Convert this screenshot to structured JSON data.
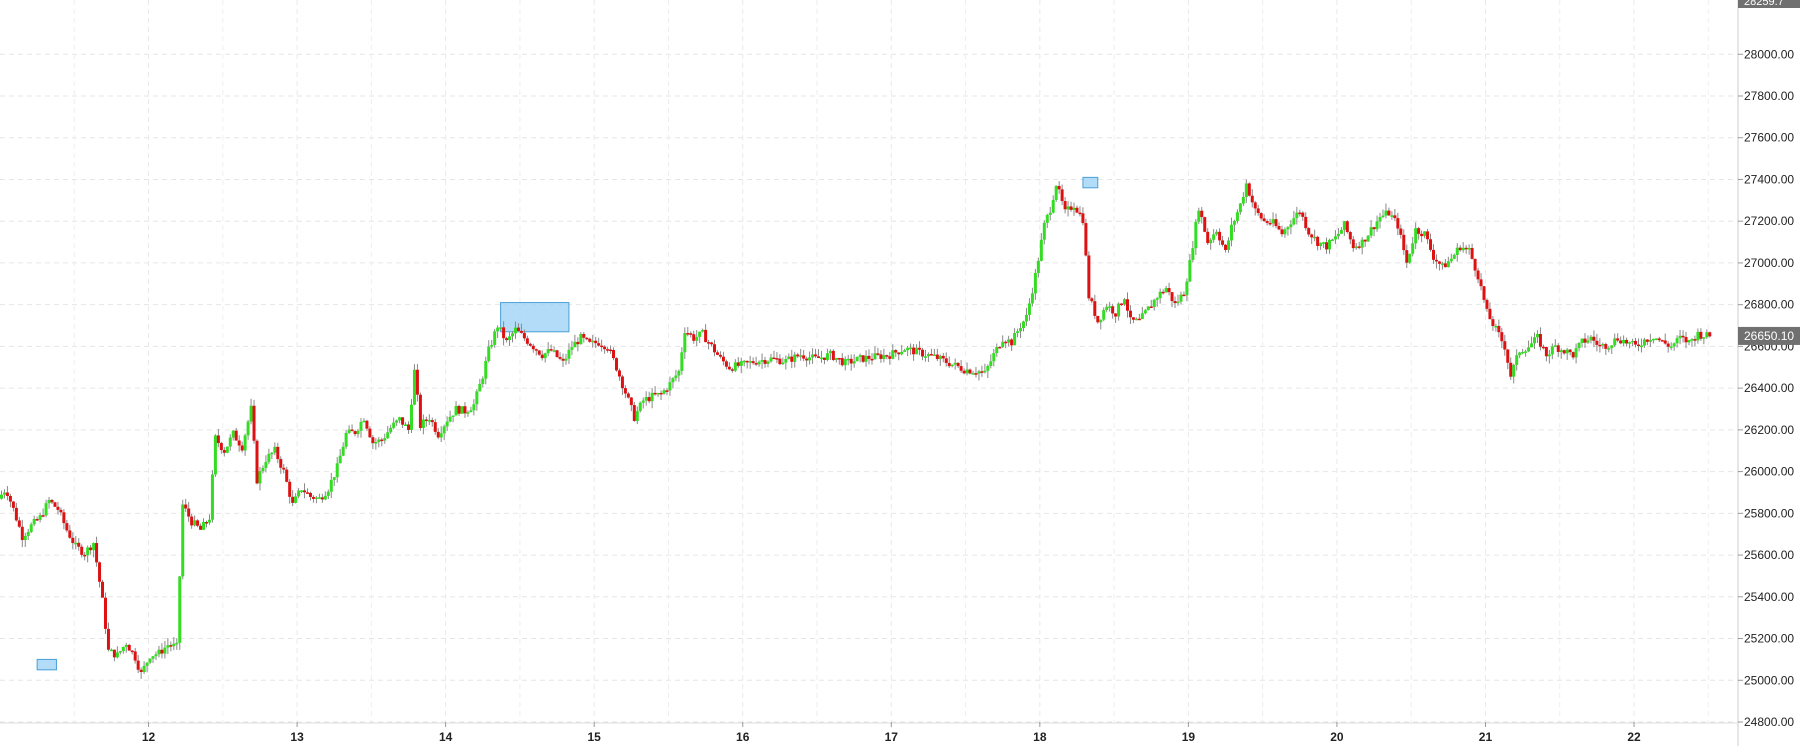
{
  "chart_data": {
    "type": "candlestick",
    "title": "",
    "xlabel": "",
    "ylabel": "",
    "ylim": [
      24800,
      28260
    ],
    "xlim": [
      11.0,
      22.7
    ],
    "yticks": [
      "24800.00",
      "25000.00",
      "25200.00",
      "25400.00",
      "25600.00",
      "25800.00",
      "26000.00",
      "26200.00",
      "26400.00",
      "26600.00",
      "26800.00",
      "27000.00",
      "27200.00",
      "27400.00",
      "27600.00",
      "27800.00",
      "28000.00"
    ],
    "xticks": [
      "12",
      "13",
      "14",
      "15",
      "16",
      "17",
      "18",
      "19",
      "20",
      "21",
      "22"
    ],
    "grid": true,
    "up_color": "#33dd22",
    "down_color": "#dd1111",
    "wick_color": "#888888",
    "current_price": {
      "label": "26650.10",
      "value": 26650.1,
      "bg": "#707070"
    },
    "top_price_tag": {
      "label": "28259.7",
      "bg": "#707070"
    },
    "highlight_boxes": [
      {
        "x0": 11.25,
        "x1": 11.38,
        "y0": 25050,
        "y1": 25100,
        "color": "#9fd3f5"
      },
      {
        "x0": 14.37,
        "x1": 14.83,
        "y0": 26670,
        "y1": 26810,
        "color": "#9fd3f5"
      },
      {
        "x0": 18.29,
        "x1": 18.39,
        "y0": 27360,
        "y1": 27410,
        "color": "#9fd3f5"
      }
    ],
    "path_points": [
      [
        11.0,
        25870
      ],
      [
        11.05,
        25920
      ],
      [
        11.1,
        25820
      ],
      [
        11.16,
        25690
      ],
      [
        11.22,
        25740
      ],
      [
        11.28,
        25780
      ],
      [
        11.34,
        25860
      ],
      [
        11.4,
        25820
      ],
      [
        11.46,
        25720
      ],
      [
        11.52,
        25640
      ],
      [
        11.58,
        25610
      ],
      [
        11.64,
        25660
      ],
      [
        11.7,
        25380
      ],
      [
        11.74,
        25140
      ],
      [
        11.8,
        25120
      ],
      [
        11.86,
        25180
      ],
      [
        11.92,
        25110
      ],
      [
        11.96,
        25030
      ],
      [
        12.02,
        25120
      ],
      [
        12.08,
        25130
      ],
      [
        12.14,
        25170
      ],
      [
        12.2,
        25160
      ],
      [
        12.24,
        25840
      ],
      [
        12.3,
        25760
      ],
      [
        12.36,
        25720
      ],
      [
        12.42,
        25780
      ],
      [
        12.46,
        26160
      ],
      [
        12.52,
        26100
      ],
      [
        12.58,
        26180
      ],
      [
        12.64,
        26120
      ],
      [
        12.7,
        26300
      ],
      [
        12.74,
        25960
      ],
      [
        12.8,
        26060
      ],
      [
        12.86,
        26100
      ],
      [
        12.92,
        26000
      ],
      [
        12.98,
        25840
      ],
      [
        13.04,
        25920
      ],
      [
        13.1,
        25880
      ],
      [
        13.16,
        25870
      ],
      [
        13.22,
        25920
      ],
      [
        13.28,
        26020
      ],
      [
        13.34,
        26180
      ],
      [
        13.4,
        26190
      ],
      [
        13.46,
        26260
      ],
      [
        13.52,
        26140
      ],
      [
        13.58,
        26150
      ],
      [
        13.64,
        26210
      ],
      [
        13.7,
        26250
      ],
      [
        13.76,
        26200
      ],
      [
        13.8,
        26480
      ],
      [
        13.84,
        26220
      ],
      [
        13.9,
        26260
      ],
      [
        13.96,
        26180
      ],
      [
        14.02,
        26250
      ],
      [
        14.08,
        26300
      ],
      [
        14.14,
        26290
      ],
      [
        14.2,
        26320
      ],
      [
        14.26,
        26460
      ],
      [
        14.3,
        26580
      ],
      [
        14.36,
        26700
      ],
      [
        14.42,
        26620
      ],
      [
        14.48,
        26680
      ],
      [
        14.54,
        26640
      ],
      [
        14.6,
        26600
      ],
      [
        14.66,
        26560
      ],
      [
        14.72,
        26580
      ],
      [
        14.8,
        26520
      ],
      [
        14.86,
        26600
      ],
      [
        14.92,
        26640
      ],
      [
        14.98,
        26610
      ],
      [
        15.04,
        26620
      ],
      [
        15.1,
        26600
      ],
      [
        15.16,
        26500
      ],
      [
        15.22,
        26380
      ],
      [
        15.28,
        26260
      ],
      [
        15.34,
        26340
      ],
      [
        15.4,
        26360
      ],
      [
        15.46,
        26370
      ],
      [
        15.52,
        26420
      ],
      [
        15.58,
        26480
      ],
      [
        15.62,
        26680
      ],
      [
        15.68,
        26640
      ],
      [
        15.74,
        26660
      ],
      [
        15.8,
        26600
      ],
      [
        15.86,
        26540
      ],
      [
        15.92,
        26500
      ],
      [
        16.0,
        26510
      ],
      [
        16.1,
        26530
      ],
      [
        16.2,
        26540
      ],
      [
        16.3,
        26530
      ],
      [
        16.4,
        26560
      ],
      [
        16.5,
        26540
      ],
      [
        16.6,
        26560
      ],
      [
        16.7,
        26520
      ],
      [
        16.8,
        26540
      ],
      [
        16.9,
        26550
      ],
      [
        17.0,
        26560
      ],
      [
        17.1,
        26590
      ],
      [
        17.2,
        26570
      ],
      [
        17.3,
        26550
      ],
      [
        17.4,
        26520
      ],
      [
        17.5,
        26490
      ],
      [
        17.6,
        26480
      ],
      [
        17.64,
        26470
      ],
      [
        17.7,
        26560
      ],
      [
        17.76,
        26640
      ],
      [
        17.82,
        26620
      ],
      [
        17.88,
        26700
      ],
      [
        17.92,
        26740
      ],
      [
        17.98,
        26940
      ],
      [
        18.04,
        27180
      ],
      [
        18.08,
        27260
      ],
      [
        18.12,
        27380
      ],
      [
        18.18,
        27240
      ],
      [
        18.24,
        27280
      ],
      [
        18.3,
        27210
      ],
      [
        18.34,
        26840
      ],
      [
        18.4,
        26720
      ],
      [
        18.46,
        26800
      ],
      [
        18.52,
        26760
      ],
      [
        18.58,
        26840
      ],
      [
        18.62,
        26720
      ],
      [
        18.68,
        26720
      ],
      [
        18.74,
        26780
      ],
      [
        18.8,
        26840
      ],
      [
        18.86,
        26880
      ],
      [
        18.92,
        26800
      ],
      [
        18.98,
        26860
      ],
      [
        19.02,
        27000
      ],
      [
        19.08,
        27270
      ],
      [
        19.14,
        27100
      ],
      [
        19.2,
        27160
      ],
      [
        19.26,
        27050
      ],
      [
        19.3,
        27170
      ],
      [
        19.36,
        27280
      ],
      [
        19.4,
        27380
      ],
      [
        19.46,
        27250
      ],
      [
        19.52,
        27200
      ],
      [
        19.58,
        27190
      ],
      [
        19.64,
        27140
      ],
      [
        19.7,
        27200
      ],
      [
        19.76,
        27250
      ],
      [
        19.82,
        27150
      ],
      [
        19.88,
        27100
      ],
      [
        19.94,
        27080
      ],
      [
        20.0,
        27120
      ],
      [
        20.06,
        27180
      ],
      [
        20.12,
        27080
      ],
      [
        20.18,
        27100
      ],
      [
        20.24,
        27160
      ],
      [
        20.3,
        27220
      ],
      [
        20.36,
        27240
      ],
      [
        20.42,
        27180
      ],
      [
        20.48,
        27000
      ],
      [
        20.54,
        27160
      ],
      [
        20.6,
        27140
      ],
      [
        20.66,
        27030
      ],
      [
        20.72,
        26980
      ],
      [
        20.78,
        27020
      ],
      [
        20.84,
        27080
      ],
      [
        20.9,
        27060
      ],
      [
        20.96,
        26940
      ],
      [
        21.02,
        26760
      ],
      [
        21.08,
        26680
      ],
      [
        21.14,
        26600
      ],
      [
        21.18,
        26460
      ],
      [
        21.24,
        26580
      ],
      [
        21.3,
        26600
      ],
      [
        21.36,
        26640
      ],
      [
        21.42,
        26560
      ],
      [
        21.48,
        26600
      ],
      [
        21.54,
        26580
      ],
      [
        21.6,
        26560
      ],
      [
        21.66,
        26620
      ],
      [
        21.72,
        26640
      ],
      [
        21.78,
        26600
      ],
      [
        21.84,
        26610
      ],
      [
        21.9,
        26640
      ],
      [
        21.96,
        26620
      ],
      [
        22.02,
        26600
      ],
      [
        22.08,
        26630
      ],
      [
        22.14,
        26650
      ],
      [
        22.2,
        26620
      ],
      [
        22.26,
        26600
      ],
      [
        22.32,
        26640
      ],
      [
        22.38,
        26620
      ],
      [
        22.44,
        26660
      ],
      [
        22.5,
        26650
      ]
    ]
  }
}
